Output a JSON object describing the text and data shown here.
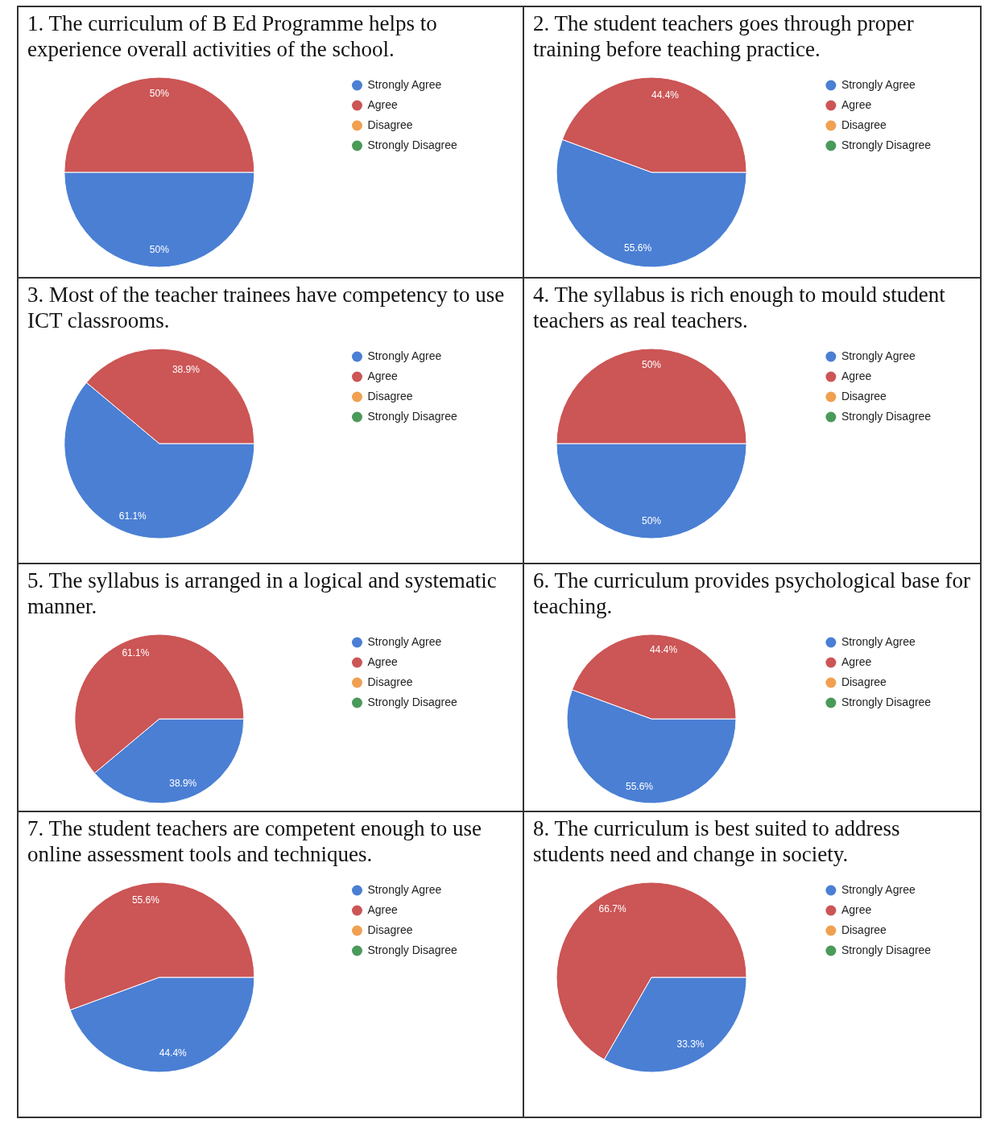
{
  "chart_data": [
    {
      "type": "pie",
      "title": "1. The curriculum of B Ed Programme helps to experience overall activities of the school.",
      "categories": [
        "Strongly Agree",
        "Agree",
        "Disagree",
        "Strongly Disagree"
      ],
      "values": [
        50,
        50,
        0,
        0
      ],
      "value_labels": [
        "50%",
        "50%",
        null,
        null
      ],
      "colors": [
        "#4a7fd4",
        "#cc5555",
        "#f0a050",
        "#4a9a5a"
      ],
      "legend": "right"
    },
    {
      "type": "pie",
      "title": "2. The student teachers goes through proper training before teaching practice.",
      "categories": [
        "Strongly Agree",
        "Agree",
        "Disagree",
        "Strongly Disagree"
      ],
      "values": [
        55.6,
        44.4,
        0,
        0
      ],
      "value_labels": [
        "55.6%",
        "44.4%",
        null,
        null
      ],
      "colors": [
        "#4a7fd4",
        "#cc5555",
        "#f0a050",
        "#4a9a5a"
      ],
      "legend": "right"
    },
    {
      "type": "pie",
      "title": "3. Most of the teacher trainees have competency to use ICT classrooms.",
      "categories": [
        "Strongly Agree",
        "Agree",
        "Disagree",
        "Strongly Disagree"
      ],
      "values": [
        61.1,
        38.9,
        0,
        0
      ],
      "value_labels": [
        "61.1%",
        "38.9%",
        null,
        null
      ],
      "colors": [
        "#4a7fd4",
        "#cc5555",
        "#f0a050",
        "#4a9a5a"
      ],
      "legend": "right"
    },
    {
      "type": "pie",
      "title": "4. The syllabus is rich enough to mould student teachers as real teachers.",
      "categories": [
        "Strongly Agree",
        "Agree",
        "Disagree",
        "Strongly Disagree"
      ],
      "values": [
        50,
        50,
        0,
        0
      ],
      "value_labels": [
        "50%",
        "50%",
        null,
        null
      ],
      "colors": [
        "#4a7fd4",
        "#cc5555",
        "#f0a050",
        "#4a9a5a"
      ],
      "legend": "right"
    },
    {
      "type": "pie",
      "title": "5. The syllabus is arranged in a logical and systematic manner.",
      "categories": [
        "Strongly Agree",
        "Agree",
        "Disagree",
        "Strongly Disagree"
      ],
      "values": [
        38.9,
        61.1,
        0,
        0
      ],
      "value_labels": [
        "38.9%",
        "61.1%",
        null,
        null
      ],
      "colors": [
        "#4a7fd4",
        "#cc5555",
        "#f0a050",
        "#4a9a5a"
      ],
      "legend": "right"
    },
    {
      "type": "pie",
      "title": "6. The curriculum provides psychological base for teaching.",
      "categories": [
        "Strongly Agree",
        "Agree",
        "Disagree",
        "Strongly Disagree"
      ],
      "values": [
        55.6,
        44.4,
        0,
        0
      ],
      "value_labels": [
        "55.6%",
        "44.4%",
        null,
        null
      ],
      "colors": [
        "#4a7fd4",
        "#cc5555",
        "#f0a050",
        "#4a9a5a"
      ],
      "legend": "right"
    },
    {
      "type": "pie",
      "title": "7. The student teachers are competent enough to use online assessment tools and techniques.",
      "categories": [
        "Strongly Agree",
        "Agree",
        "Disagree",
        "Strongly Disagree"
      ],
      "values": [
        44.4,
        55.6,
        0,
        0
      ],
      "value_labels": [
        "44.4%",
        "55.6%",
        null,
        null
      ],
      "colors": [
        "#4a7fd4",
        "#cc5555",
        "#f0a050",
        "#4a9a5a"
      ],
      "legend": "right"
    },
    {
      "type": "pie",
      "title": "8. The curriculum is best suited to address students need and change in society.",
      "categories": [
        "Strongly Agree",
        "Agree",
        "Disagree",
        "Strongly Disagree"
      ],
      "values": [
        33.3,
        66.7,
        0,
        0
      ],
      "value_labels": [
        "33.3%",
        "66.7%",
        null,
        null
      ],
      "colors": [
        "#4a7fd4",
        "#cc5555",
        "#f0a050",
        "#4a9a5a"
      ],
      "legend": "right"
    }
  ]
}
